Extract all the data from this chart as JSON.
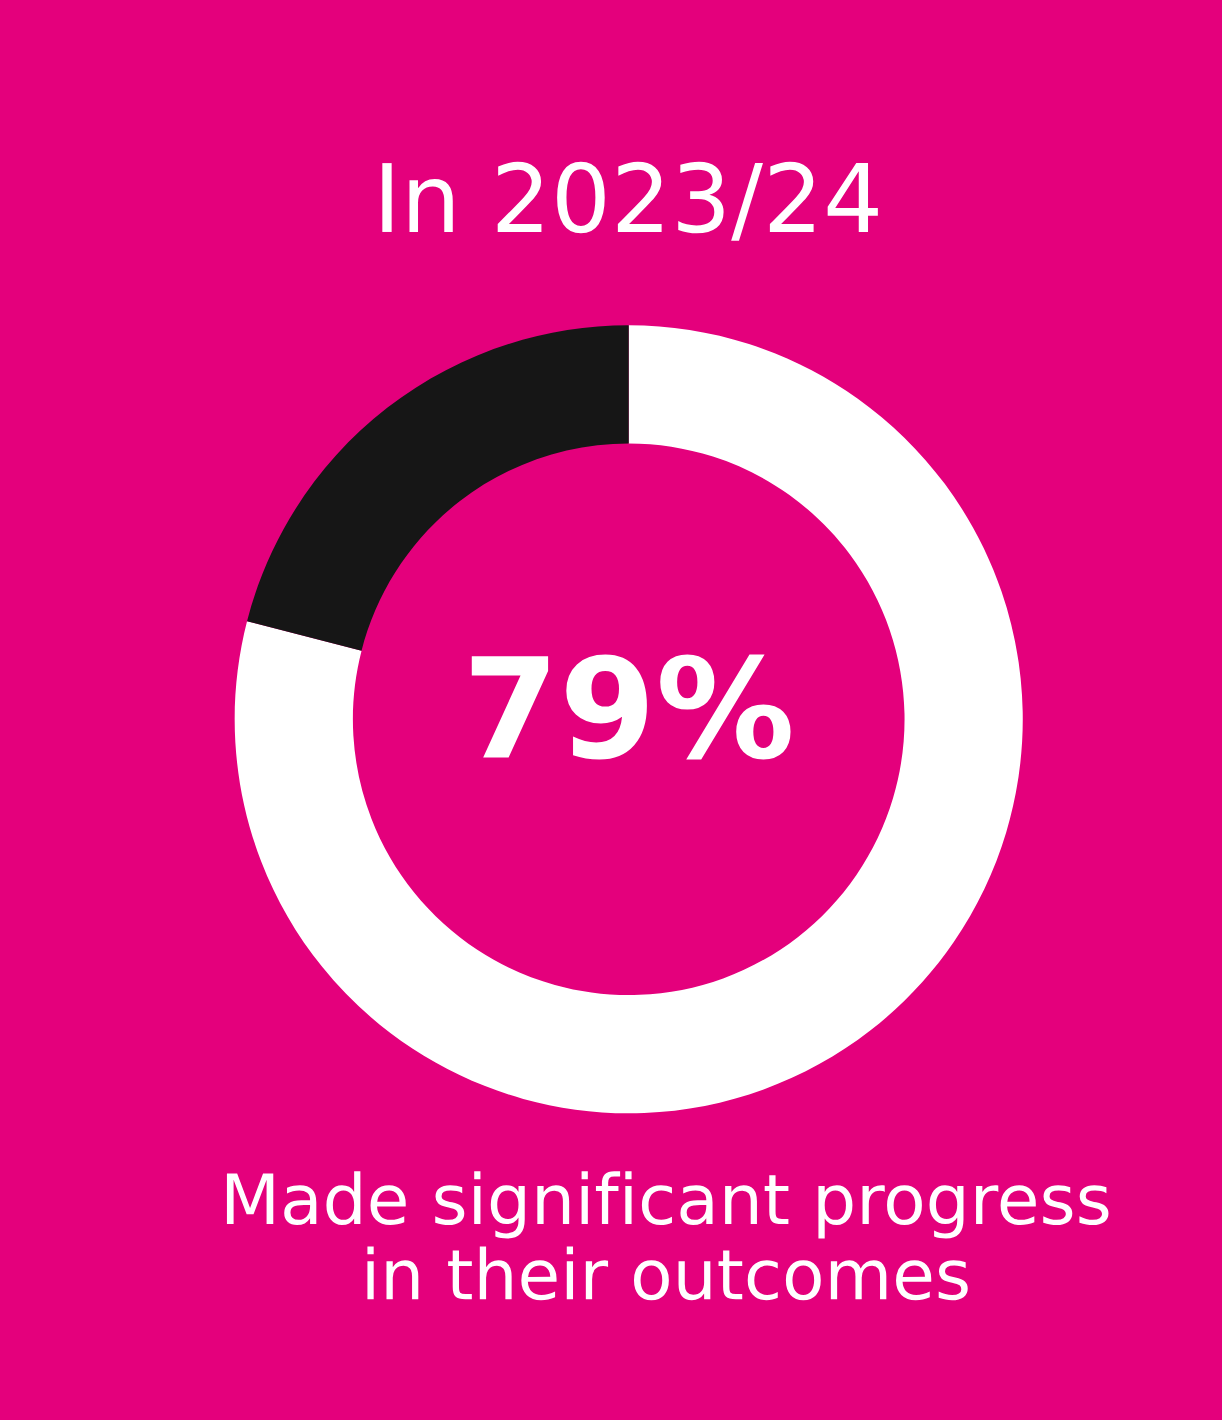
{
  "chart_data": {
    "type": "donut",
    "title": "In 2023/24",
    "categories": [
      null,
      null
    ],
    "values": [
      79,
      21
    ],
    "colors": [
      "#ffffff",
      "#161616"
    ],
    "annotations": [
      "79%",
      "Made significant progress\nin their outcomes"
    ]
  }
}
